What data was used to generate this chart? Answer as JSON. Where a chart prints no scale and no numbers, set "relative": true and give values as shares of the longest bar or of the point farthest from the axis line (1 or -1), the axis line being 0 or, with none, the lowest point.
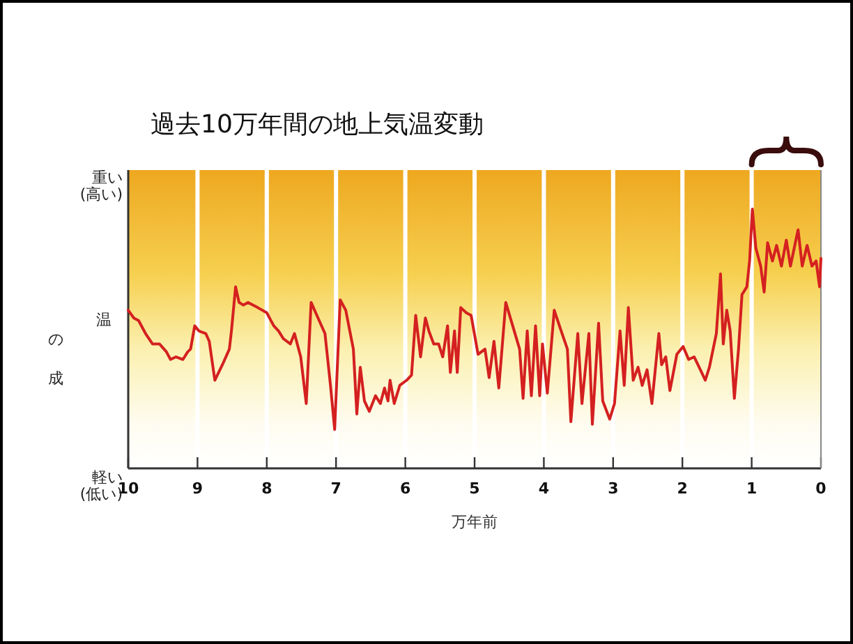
{
  "chart_data": {
    "type": "line",
    "title": "過去10万年間の地上気温変動",
    "xlabel": "万年前",
    "relative": true,
    "annotations": [
      "重い\n(高い)",
      "軽い\n(低い)",
      "温",
      "の",
      "成"
    ],
    "xlim": [
      10,
      0
    ],
    "xticks": [
      10,
      9,
      8,
      7,
      6,
      5,
      4,
      3,
      2,
      1,
      0
    ],
    "grid": "x",
    "series": [
      {
        "color": "#d42020",
        "x": [
          10.0,
          9.92,
          9.85,
          9.75,
          9.65,
          9.55,
          9.45,
          9.39,
          9.31,
          9.21,
          9.14,
          9.1,
          9.04,
          8.98,
          8.88,
          8.83,
          8.75,
          8.64,
          8.54,
          8.51,
          8.45,
          8.4,
          8.34,
          8.27,
          8.13,
          8.0,
          7.9,
          7.83,
          7.76,
          7.66,
          7.6,
          7.51,
          7.43,
          7.36,
          7.26,
          7.16,
          7.08,
          7.02,
          6.94,
          6.86,
          6.75,
          6.7,
          6.65,
          6.59,
          6.52,
          6.43,
          6.36,
          6.3,
          6.25,
          6.22,
          6.16,
          6.08,
          5.98,
          5.91,
          5.85,
          5.78,
          5.71,
          5.66,
          5.59,
          5.52,
          5.46,
          5.39,
          5.35,
          5.29,
          5.25,
          5.2,
          5.12,
          5.05,
          4.95,
          4.85,
          4.79,
          4.72,
          4.65,
          4.55,
          4.45,
          4.35,
          4.3,
          4.24,
          4.18,
          4.12,
          4.06,
          4.02,
          3.95,
          3.85,
          3.75,
          3.66,
          3.61,
          3.51,
          3.45,
          3.35,
          3.3,
          3.21,
          3.15,
          3.05,
          2.98,
          2.9,
          2.84,
          2.78,
          2.71,
          2.64,
          2.58,
          2.51,
          2.44,
          2.34,
          2.3,
          2.24,
          2.18,
          2.08,
          1.99,
          1.91,
          1.83,
          1.74,
          1.67,
          1.61,
          1.51,
          1.45,
          1.41,
          1.36,
          1.31,
          1.25,
          1.19,
          1.14,
          1.07,
          1.03,
          0.99,
          0.94,
          0.87,
          0.82,
          0.77,
          0.7,
          0.64,
          0.57,
          0.5,
          0.44,
          0.37,
          0.33,
          0.27,
          0.2,
          0.13,
          0.07,
          0.02,
          0.0
        ],
        "values": [
          0.61,
          0.58,
          0.57,
          0.52,
          0.48,
          0.48,
          0.45,
          0.42,
          0.43,
          0.42,
          0.45,
          0.46,
          0.55,
          0.53,
          0.52,
          0.49,
          0.34,
          0.4,
          0.46,
          0.53,
          0.7,
          0.64,
          0.63,
          0.64,
          0.62,
          0.6,
          0.55,
          0.53,
          0.5,
          0.48,
          0.52,
          0.43,
          0.25,
          0.64,
          0.58,
          0.52,
          0.32,
          0.15,
          0.65,
          0.61,
          0.46,
          0.21,
          0.39,
          0.26,
          0.22,
          0.28,
          0.25,
          0.31,
          0.26,
          0.34,
          0.25,
          0.32,
          0.34,
          0.36,
          0.59,
          0.43,
          0.58,
          0.53,
          0.48,
          0.48,
          0.43,
          0.55,
          0.37,
          0.53,
          0.37,
          0.62,
          0.6,
          0.59,
          0.44,
          0.46,
          0.35,
          0.49,
          0.31,
          0.64,
          0.55,
          0.46,
          0.27,
          0.53,
          0.28,
          0.55,
          0.28,
          0.48,
          0.29,
          0.61,
          0.53,
          0.46,
          0.18,
          0.52,
          0.25,
          0.52,
          0.17,
          0.56,
          0.26,
          0.19,
          0.25,
          0.53,
          0.32,
          0.62,
          0.34,
          0.39,
          0.32,
          0.38,
          0.25,
          0.52,
          0.4,
          0.43,
          0.3,
          0.44,
          0.47,
          0.42,
          0.43,
          0.38,
          0.34,
          0.39,
          0.52,
          0.75,
          0.48,
          0.61,
          0.53,
          0.27,
          0.46,
          0.67,
          0.7,
          0.8,
          1.0,
          0.85,
          0.78,
          0.68,
          0.87,
          0.8,
          0.86,
          0.78,
          0.88,
          0.78,
          0.87,
          0.92,
          0.78,
          0.86,
          0.78,
          0.8,
          0.7,
          0.81
        ]
      }
    ]
  }
}
